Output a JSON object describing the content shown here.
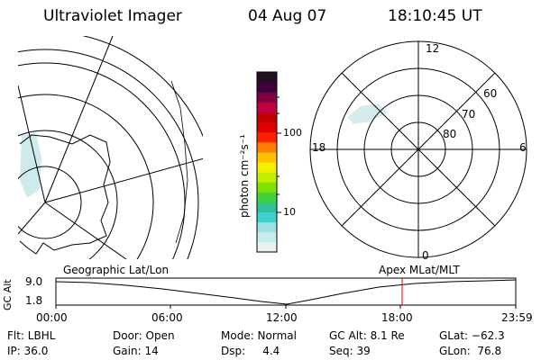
{
  "header": {
    "instrument": "Ultraviolet Imager",
    "date": "04 Aug 07",
    "time": "18:10:45 UT"
  },
  "colorbar": {
    "unit_label": "photon cm⁻²s⁻¹",
    "ticks": [
      "100",
      "10"
    ],
    "colors": [
      "#e8f4f4",
      "#c8ecec",
      "#a0e0e0",
      "#40d0d0",
      "#30c0a0",
      "#40d040",
      "#80e000",
      "#c0f000",
      "#f0f000",
      "#ffc000",
      "#ff8000",
      "#ff2000",
      "#e00000",
      "#c00000",
      "#c00040",
      "#800040",
      "#400040",
      "#201020"
    ]
  },
  "polar_plot": {
    "mlt_labels": [
      "12",
      "18",
      "6",
      "0"
    ],
    "lat_labels": [
      "60",
      "70",
      "80"
    ]
  },
  "timeline": {
    "left_label": "Geographic Lat/Lon",
    "right_label": "Apex MLat/MLT",
    "y_label": "GC Alt",
    "y_max": "9.0",
    "y_min": "1.8",
    "x_ticks": [
      "00:00",
      "06:00",
      "12:00",
      "18:00",
      "23:59"
    ],
    "marker_color": "#e00000"
  },
  "info": {
    "flt": "Flt: LBHL",
    "ip": "IP: 36.0",
    "door": "Door: Open",
    "gain": "Gain: 14",
    "mode": "Mode: Normal",
    "dsp": "Dsp:     4.4",
    "gcalt": "GC Alt: 8.1 Re",
    "seq": "Seq: 39",
    "glat": "GLat: −62.3",
    "glon": "GLon:  76.8"
  }
}
